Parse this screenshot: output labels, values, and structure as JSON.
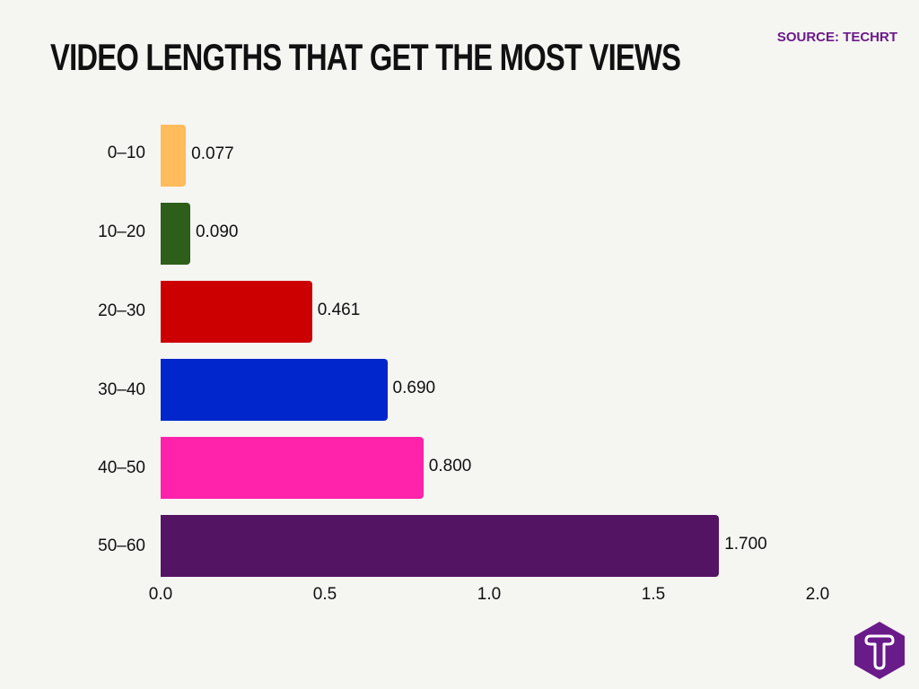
{
  "header": {
    "title": "VIDEO LENGTHS THAT GET THE MOST VIEWS",
    "source": "SOURCE: TECHRT"
  },
  "logo": {
    "icon": "techrt-hexagon-t-logo",
    "color": "#6a1b8a"
  },
  "chart_data": {
    "type": "bar",
    "orientation": "horizontal",
    "title": "VIDEO LENGTHS THAT GET THE MOST VIEWS",
    "source": "SOURCE: TECHRT",
    "xlabel": "",
    "ylabel": "",
    "xlim": [
      0.0,
      2.0
    ],
    "x_ticks": [
      "0.0",
      "0.5",
      "1.0",
      "1.5",
      "2.0"
    ],
    "grid": false,
    "legend": null,
    "categories": [
      "0–10",
      "10–20",
      "20–30",
      "30–40",
      "40–50",
      "50–60"
    ],
    "values": [
      0.077,
      0.09,
      0.461,
      0.69,
      0.8,
      1.7
    ],
    "value_labels": [
      "0.077",
      "0.090",
      "0.461",
      "0.690",
      "0.800",
      "1.700"
    ],
    "colors": [
      "#ffbb5c",
      "#2d5e1a",
      "#cc0000",
      "#0026cc",
      "#ff22aa",
      "#541464"
    ]
  }
}
